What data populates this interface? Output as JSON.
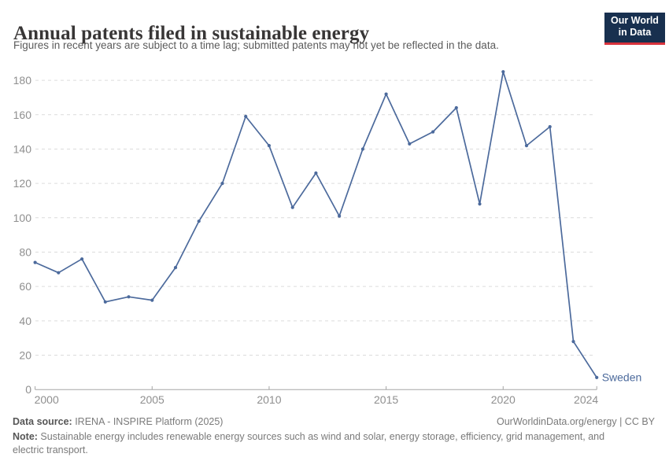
{
  "header": {
    "title": "Annual patents filed in sustainable energy",
    "subtitle": "Figures in recent years are subject to a time lag; submitted patents may not yet be reflected in the data."
  },
  "logo": {
    "line1": "Our World",
    "line2": "in Data",
    "bg_color": "#18304f",
    "bar_color": "#d8323c"
  },
  "colors": {
    "grid": "#dcdcdc",
    "axis": "#a5a5a5",
    "tick_label": "#8f8f8f",
    "series_blue": "#4C6A9C",
    "title_text": "#383636",
    "subtitle_text": "#5b5b5b",
    "footer_text": "#7a7a7a"
  },
  "chart_data": {
    "type": "line",
    "title": "Annual patents filed in sustainable energy",
    "xlabel": "",
    "ylabel": "",
    "xlim": [
      2000,
      2024
    ],
    "ylim": [
      0,
      186
    ],
    "x_ticks": [
      2000,
      2005,
      2010,
      2015,
      2020,
      2024
    ],
    "y_ticks": [
      0,
      20,
      40,
      60,
      80,
      100,
      120,
      140,
      160,
      180
    ],
    "grid": "horizontal-dashed",
    "legend_position": "line-end-label",
    "series": [
      {
        "name": "Sweden",
        "color": "#4C6A9C",
        "x": [
          2000,
          2001,
          2002,
          2003,
          2004,
          2005,
          2006,
          2007,
          2008,
          2009,
          2010,
          2011,
          2012,
          2013,
          2014,
          2015,
          2016,
          2017,
          2018,
          2019,
          2020,
          2021,
          2022,
          2023,
          2024
        ],
        "values": [
          74,
          68,
          76,
          51,
          54,
          52,
          71,
          98,
          120,
          159,
          142,
          106,
          126,
          101,
          140,
          172,
          143,
          150,
          164,
          108,
          185,
          142,
          153,
          28,
          7
        ]
      }
    ]
  },
  "footer": {
    "data_source_label": "Data source:",
    "data_source_value": " IRENA - INSPIRE Platform (2025)",
    "link_text": "OurWorldinData.org/energy | CC BY",
    "note_label": "Note:",
    "note_text": " Sustainable energy includes renewable energy sources such as wind and solar, energy storage, efficiency, grid management, and electric transport."
  }
}
